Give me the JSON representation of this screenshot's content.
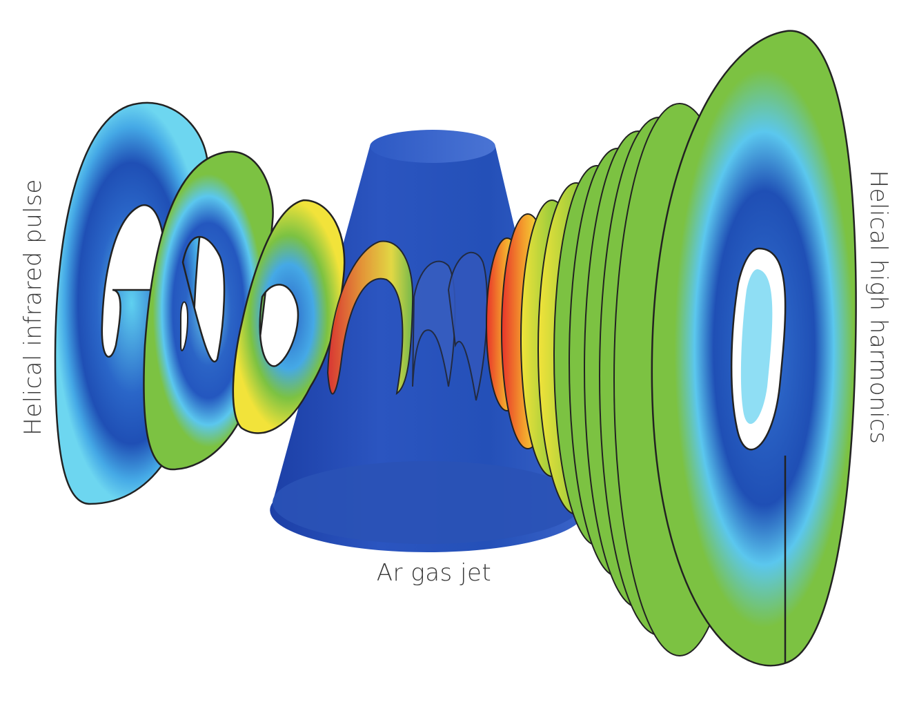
{
  "labels": {
    "left": "Helical infrared pulse",
    "right": "Helical high harmonics",
    "bottom": "Ar gas jet"
  },
  "colors": {
    "dark_blue": "#1f4fb5",
    "light_blue": "#5fd0f0",
    "green": "#7cc242",
    "yellow": "#f2e33a",
    "orange": "#f39a2c",
    "red": "#e8332a",
    "outline": "#222222"
  }
}
